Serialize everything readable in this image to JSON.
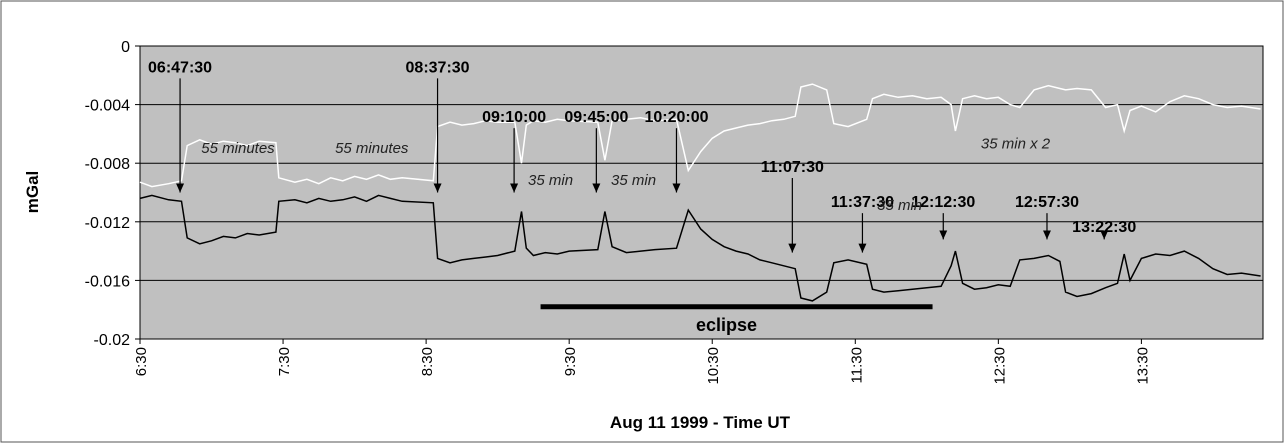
{
  "chart_data": {
    "type": "line",
    "x_label": "Aug 11 1999 - Time UT",
    "y_label": "mGal",
    "xlim": [
      6.5,
      14.35
    ],
    "ylim": [
      -0.02,
      0
    ],
    "xticks": [
      {
        "value": 6.5,
        "label": "6:30"
      },
      {
        "value": 7.5,
        "label": "7:30"
      },
      {
        "value": 8.5,
        "label": "8:30"
      },
      {
        "value": 9.5,
        "label": "9:30"
      },
      {
        "value": 10.5,
        "label": "10:30"
      },
      {
        "value": 11.5,
        "label": "11:30"
      },
      {
        "value": 12.5,
        "label": "12:30"
      },
      {
        "value": 13.5,
        "label": "13:30"
      }
    ],
    "yticks": [
      0,
      -0.004,
      -0.008,
      -0.012,
      -0.016,
      -0.02
    ],
    "grid": true,
    "background": "#c0c0c0",
    "x": [
      6.5,
      6.583,
      6.7,
      6.79,
      6.83,
      6.917,
      7.0,
      7.083,
      7.167,
      7.25,
      7.333,
      7.45,
      7.47,
      7.583,
      7.667,
      7.75,
      7.833,
      7.917,
      8.0,
      8.083,
      8.167,
      8.25,
      8.333,
      8.55,
      8.58,
      8.667,
      8.75,
      8.833,
      8.917,
      9.0,
      9.12,
      9.167,
      9.2,
      9.25,
      9.333,
      9.417,
      9.5,
      9.7,
      9.75,
      9.8,
      9.9,
      10.0,
      10.1,
      10.25,
      10.333,
      10.42,
      10.5,
      10.583,
      10.667,
      10.75,
      10.833,
      10.917,
      11.0,
      11.08,
      11.12,
      11.2,
      11.3,
      11.35,
      11.45,
      11.58,
      11.62,
      11.7,
      11.8,
      11.9,
      12.0,
      12.1,
      12.17,
      12.2,
      12.25,
      12.333,
      12.417,
      12.5,
      12.583,
      12.65,
      12.75,
      12.85,
      12.93,
      12.97,
      13.05,
      13.15,
      13.25,
      13.333,
      13.38,
      13.42,
      13.5,
      13.6,
      13.7,
      13.8,
      13.9,
      14.0,
      14.1,
      14.2,
      14.333
    ],
    "series": [
      {
        "color": "#000000",
        "values": [
          -0.0104,
          -0.0102,
          -0.0105,
          -0.0106,
          -0.0131,
          -0.0135,
          -0.0133,
          -0.013,
          -0.0131,
          -0.0128,
          -0.0129,
          -0.0127,
          -0.0106,
          -0.0105,
          -0.0107,
          -0.0104,
          -0.0106,
          -0.0105,
          -0.0103,
          -0.0106,
          -0.0102,
          -0.0104,
          -0.0106,
          -0.0107,
          -0.0145,
          -0.0148,
          -0.0146,
          -0.0145,
          -0.0144,
          -0.0143,
          -0.014,
          -0.0113,
          -0.0138,
          -0.0143,
          -0.0141,
          -0.0142,
          -0.014,
          -0.0139,
          -0.0113,
          -0.0137,
          -0.0141,
          -0.014,
          -0.0139,
          -0.0138,
          -0.0112,
          -0.0125,
          -0.0132,
          -0.0137,
          -0.014,
          -0.0142,
          -0.0146,
          -0.0148,
          -0.015,
          -0.0152,
          -0.0172,
          -0.0174,
          -0.0168,
          -0.0148,
          -0.0146,
          -0.0149,
          -0.0166,
          -0.0168,
          -0.0167,
          -0.0166,
          -0.0165,
          -0.0164,
          -0.015,
          -0.014,
          -0.0162,
          -0.0166,
          -0.0165,
          -0.0163,
          -0.0164,
          -0.0146,
          -0.0145,
          -0.0143,
          -0.0147,
          -0.0168,
          -0.0171,
          -0.0169,
          -0.0165,
          -0.0162,
          -0.0142,
          -0.016,
          -0.0145,
          -0.0142,
          -0.0143,
          -0.014,
          -0.0145,
          -0.0152,
          -0.0156,
          -0.0155,
          -0.0157
        ]
      },
      {
        "color": "#ffffff",
        "values": [
          -0.0093,
          -0.0096,
          -0.0094,
          -0.0092,
          -0.0068,
          -0.0064,
          -0.0067,
          -0.0065,
          -0.0066,
          -0.0068,
          -0.0065,
          -0.0066,
          -0.009,
          -0.0093,
          -0.0091,
          -0.0094,
          -0.009,
          -0.0092,
          -0.0089,
          -0.0091,
          -0.0088,
          -0.0091,
          -0.009,
          -0.0092,
          -0.0055,
          -0.0052,
          -0.0054,
          -0.0053,
          -0.0051,
          -0.0052,
          -0.0052,
          -0.008,
          -0.0054,
          -0.0051,
          -0.0052,
          -0.005,
          -0.0051,
          -0.0052,
          -0.0078,
          -0.0051,
          -0.005,
          -0.0049,
          -0.0051,
          -0.005,
          -0.0085,
          -0.0072,
          -0.0063,
          -0.0058,
          -0.0056,
          -0.0054,
          -0.0053,
          -0.0051,
          -0.005,
          -0.0048,
          -0.0028,
          -0.0026,
          -0.003,
          -0.0053,
          -0.0055,
          -0.005,
          -0.0036,
          -0.0033,
          -0.0035,
          -0.0034,
          -0.0036,
          -0.0035,
          -0.004,
          -0.0058,
          -0.0036,
          -0.0034,
          -0.0036,
          -0.0035,
          -0.004,
          -0.0042,
          -0.003,
          -0.0027,
          -0.0029,
          -0.003,
          -0.0029,
          -0.003,
          -0.0042,
          -0.004,
          -0.0058,
          -0.0044,
          -0.0041,
          -0.0045,
          -0.0038,
          -0.0034,
          -0.0036,
          -0.004,
          -0.0042,
          -0.0041,
          -0.0043
        ]
      }
    ],
    "annotations": [
      {
        "text": "06:47:30",
        "x": 6.78,
        "y": -0.0018,
        "tip": -0.01
      },
      {
        "text": "08:37:30",
        "x": 8.58,
        "y": -0.0018,
        "tip": -0.01
      },
      {
        "text": "09:10:00",
        "x": 9.115,
        "y": -0.0052,
        "tip": -0.01
      },
      {
        "text": "09:45:00",
        "x": 9.69,
        "y": -0.0052,
        "tip": -0.01
      },
      {
        "text": "10:20:00",
        "x": 10.25,
        "y": -0.0052,
        "tip": -0.01
      },
      {
        "text": "11:07:30",
        "x": 11.06,
        "y": -0.0086,
        "tip": -0.0141
      },
      {
        "text": "11:37:30",
        "x": 11.55,
        "y": -0.011,
        "tip": -0.0141
      },
      {
        "text": "12:12:30",
        "x": 12.115,
        "y": -0.011,
        "tip": -0.0132
      },
      {
        "text": "12:57:30",
        "x": 12.84,
        "y": -0.011,
        "tip": -0.0132
      },
      {
        "text": "13:22:30",
        "x": 13.24,
        "y": -0.0127,
        "tip": -0.0132
      }
    ],
    "notes": [
      {
        "text": "55 minutes",
        "x": 7.185,
        "y": -0.0073
      },
      {
        "text": "55 minutes",
        "x": 8.12,
        "y": -0.0073
      },
      {
        "text": "35 min",
        "x": 9.37,
        "y": -0.0095
      },
      {
        "text": "35 min",
        "x": 9.95,
        "y": -0.0095
      },
      {
        "text": "35 min",
        "x": 11.81,
        "y": -0.0112
      },
      {
        "text": "35 min x 2",
        "x": 12.62,
        "y": -0.007
      }
    ],
    "eclipse": {
      "text": "eclipse",
      "x": [
        9.3,
        12.04
      ],
      "y": -0.0178
    }
  }
}
